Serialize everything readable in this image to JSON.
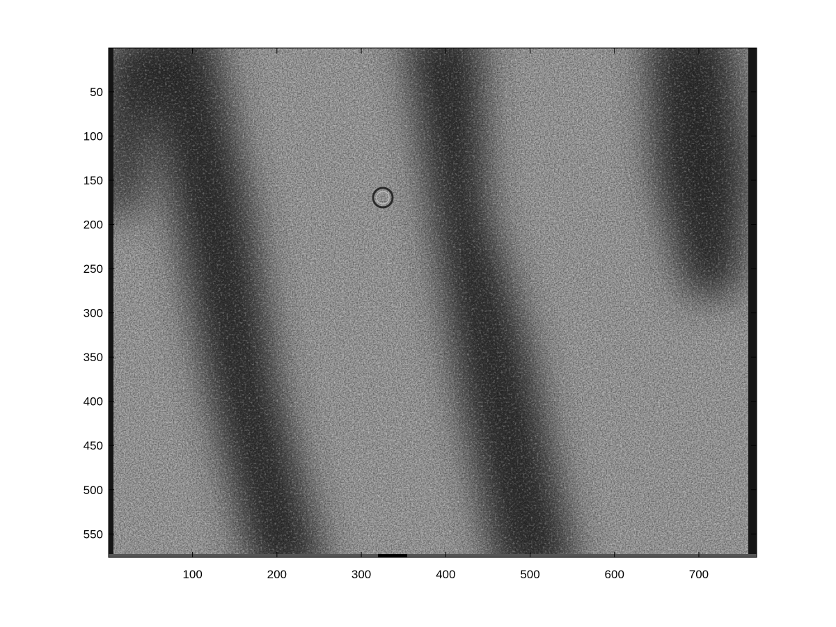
{
  "figure": {
    "type": "image",
    "colormap": "gray",
    "image_size": {
      "width": 768,
      "height": 576
    },
    "x_ticks": [
      100,
      200,
      300,
      400,
      500,
      600,
      700
    ],
    "y_ticks": [
      50,
      100,
      150,
      200,
      250,
      300,
      350,
      400,
      450,
      500,
      550
    ],
    "x_tick_labels": [
      "100",
      "200",
      "300",
      "400",
      "500",
      "600",
      "700"
    ],
    "y_tick_labels": [
      "50",
      "100",
      "150",
      "200",
      "250",
      "300",
      "350",
      "400",
      "450",
      "500",
      "550"
    ],
    "xlim": [
      0.5,
      768.5
    ],
    "ylim": [
      0.5,
      576.5
    ],
    "y_direction": "reverse",
    "colors": {
      "background": "#ffffff",
      "axis": "#000000",
      "band_dark": "#2e2e2e",
      "base_gray": "#a2a2a2"
    }
  }
}
